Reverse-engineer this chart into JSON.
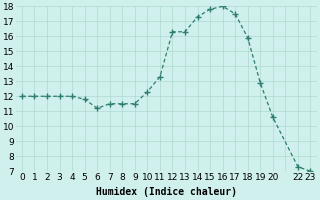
{
  "x": [
    0,
    1,
    2,
    3,
    4,
    5,
    6,
    7,
    8,
    9,
    10,
    11,
    12,
    13,
    14,
    15,
    16,
    17,
    18,
    19,
    20,
    22,
    23
  ],
  "y": [
    12.0,
    12.0,
    12.0,
    12.0,
    12.0,
    11.8,
    11.2,
    11.5,
    11.5,
    11.5,
    12.3,
    13.3,
    16.3,
    16.3,
    17.3,
    17.8,
    18.0,
    17.5,
    15.9,
    12.9,
    10.6,
    7.3,
    7.0
  ],
  "line_color": "#2e7d6e",
  "marker": "+",
  "marker_size": 4.0,
  "bg_color": "#cff0ec",
  "grid_color": "#b0d8d2",
  "xlabel": "Humidex (Indice chaleur)",
  "ylim": [
    7,
    18
  ],
  "yticks": [
    7,
    8,
    9,
    10,
    11,
    12,
    13,
    14,
    15,
    16,
    17,
    18
  ],
  "xlabel_fontsize": 7,
  "tick_fontsize": 6.5,
  "line_width": 0.9
}
